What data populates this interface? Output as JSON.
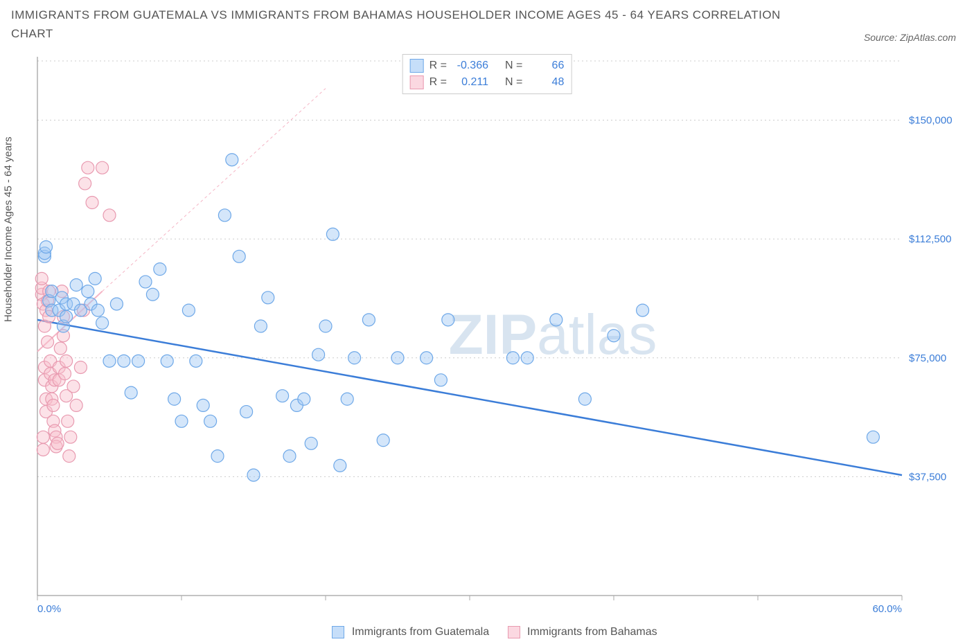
{
  "title": "IMMIGRANTS FROM GUATEMALA VS IMMIGRANTS FROM BAHAMAS HOUSEHOLDER INCOME AGES 45 - 64 YEARS CORRELATION CHART",
  "source": "Source: ZipAtlas.com",
  "watermark_bold": "ZIP",
  "watermark_light": "atlas",
  "chart": {
    "type": "scatter",
    "ylabel": "Householder Income Ages 45 - 64 years",
    "xlim": [
      0,
      60
    ],
    "ylim": [
      0,
      170000
    ],
    "y_ticks": [
      37500,
      75000,
      112500,
      150000
    ],
    "y_tick_labels": [
      "$37,500",
      "$75,000",
      "$112,500",
      "$150,000"
    ],
    "x_ticks": [
      0,
      10,
      20,
      30,
      40,
      50,
      60
    ],
    "x_tick_labels": [
      "0.0%",
      "",
      "",
      "",
      "",
      "",
      "60.0%"
    ],
    "grid_color": "#cccccc",
    "axis_color": "#888888",
    "background_color": "#ffffff",
    "tick_label_color": "#3b7dd8",
    "marker_radius": 9,
    "series": [
      {
        "name": "Immigrants from Guatemala",
        "color_fill": "rgba(160,200,245,0.45)",
        "color_stroke": "#6ea8e8",
        "r_value": "-0.366",
        "n_value": "66",
        "trend": {
          "x1": 0,
          "y1": 87000,
          "x2": 60,
          "y2": 38000
        },
        "points": [
          [
            0.5,
            107000
          ],
          [
            0.5,
            108000
          ],
          [
            0.6,
            110000
          ],
          [
            0.8,
            93000
          ],
          [
            1,
            90000
          ],
          [
            1,
            96000
          ],
          [
            1.5,
            90000
          ],
          [
            1.7,
            94000
          ],
          [
            1.8,
            85000
          ],
          [
            2,
            92000
          ],
          [
            2,
            88000
          ],
          [
            2.5,
            92000
          ],
          [
            2.7,
            98000
          ],
          [
            3,
            90000
          ],
          [
            3.5,
            96000
          ],
          [
            3.7,
            92000
          ],
          [
            4,
            100000
          ],
          [
            4.2,
            90000
          ],
          [
            4.5,
            86000
          ],
          [
            5,
            74000
          ],
          [
            5.5,
            92000
          ],
          [
            6,
            74000
          ],
          [
            6.5,
            64000
          ],
          [
            7,
            74000
          ],
          [
            7.5,
            99000
          ],
          [
            8,
            95000
          ],
          [
            8.5,
            103000
          ],
          [
            9,
            74000
          ],
          [
            9.5,
            62000
          ],
          [
            10,
            55000
          ],
          [
            10.5,
            90000
          ],
          [
            11,
            74000
          ],
          [
            11.5,
            60000
          ],
          [
            12,
            55000
          ],
          [
            12.5,
            44000
          ],
          [
            13,
            120000
          ],
          [
            13.5,
            137500
          ],
          [
            14,
            107000
          ],
          [
            14.5,
            58000
          ],
          [
            15,
            38000
          ],
          [
            15.5,
            85000
          ],
          [
            16,
            94000
          ],
          [
            17,
            63000
          ],
          [
            17.5,
            44000
          ],
          [
            18,
            60000
          ],
          [
            18.5,
            62000
          ],
          [
            19,
            48000
          ],
          [
            19.5,
            76000
          ],
          [
            20,
            85000
          ],
          [
            20.5,
            114000
          ],
          [
            21,
            41000
          ],
          [
            21.5,
            62000
          ],
          [
            22,
            75000
          ],
          [
            23,
            87000
          ],
          [
            24,
            49000
          ],
          [
            25,
            75000
          ],
          [
            27,
            75000
          ],
          [
            28,
            68000
          ],
          [
            28.5,
            87000
          ],
          [
            33,
            75000
          ],
          [
            34,
            75000
          ],
          [
            36,
            87000
          ],
          [
            38,
            62000
          ],
          [
            40,
            82000
          ],
          [
            42,
            90000
          ],
          [
            58,
            50000
          ]
        ]
      },
      {
        "name": "Immigrants from Bahamas",
        "color_fill": "rgba(248,190,205,0.45)",
        "color_stroke": "#e89ab0",
        "r_value": "0.211",
        "n_value": "48",
        "trend": {
          "x1": 0,
          "y1": 77000,
          "x2": 4.5,
          "y2": 96000
        },
        "trend_ext": {
          "x1": 4.5,
          "y1": 96000,
          "x2": 20,
          "y2": 160000
        },
        "points": [
          [
            0.3,
            95000
          ],
          [
            0.3,
            97000
          ],
          [
            0.3,
            100000
          ],
          [
            0.4,
            92000
          ],
          [
            0.4,
            50000
          ],
          [
            0.4,
            46000
          ],
          [
            0.5,
            85000
          ],
          [
            0.5,
            68000
          ],
          [
            0.5,
            72000
          ],
          [
            0.6,
            90000
          ],
          [
            0.6,
            62000
          ],
          [
            0.6,
            58000
          ],
          [
            0.7,
            80000
          ],
          [
            0.7,
            93000
          ],
          [
            0.8,
            96000
          ],
          [
            0.8,
            88000
          ],
          [
            0.9,
            74000
          ],
          [
            0.9,
            70000
          ],
          [
            1,
            66000
          ],
          [
            1,
            62000
          ],
          [
            1.1,
            60000
          ],
          [
            1.1,
            55000
          ],
          [
            1.2,
            68000
          ],
          [
            1.2,
            52000
          ],
          [
            1.3,
            50000
          ],
          [
            1.3,
            47000
          ],
          [
            1.4,
            48000
          ],
          [
            1.5,
            68000
          ],
          [
            1.5,
            72000
          ],
          [
            1.6,
            78000
          ],
          [
            1.7,
            96000
          ],
          [
            1.8,
            88000
          ],
          [
            1.8,
            82000
          ],
          [
            1.9,
            70000
          ],
          [
            2,
            74000
          ],
          [
            2,
            63000
          ],
          [
            2.1,
            55000
          ],
          [
            2.2,
            44000
          ],
          [
            2.3,
            50000
          ],
          [
            2.5,
            66000
          ],
          [
            2.7,
            60000
          ],
          [
            3,
            72000
          ],
          [
            3.2,
            90000
          ],
          [
            3.3,
            130000
          ],
          [
            3.5,
            135000
          ],
          [
            3.8,
            124000
          ],
          [
            4.5,
            135000
          ],
          [
            5,
            120000
          ]
        ]
      }
    ]
  },
  "legend": {
    "r_prefix": "R =",
    "n_prefix": "N =",
    "series1_label": "Immigrants from Guatemala",
    "series2_label": "Immigrants from Bahamas"
  }
}
